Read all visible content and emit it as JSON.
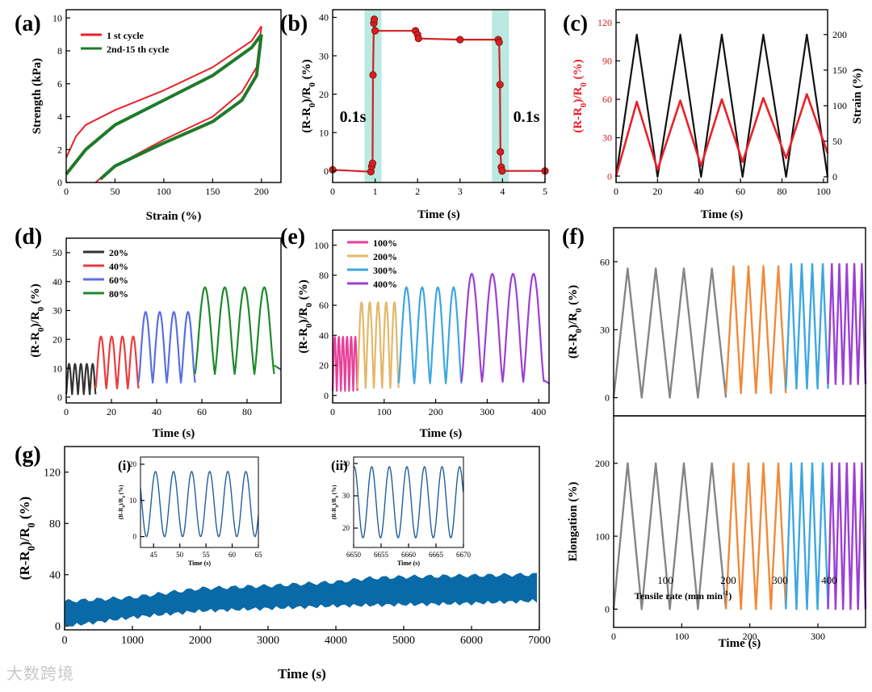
{
  "watermark": "大数跨境",
  "chart_data": [
    {
      "panel": "(a)",
      "type": "line",
      "xlabel": "Strain (%)",
      "ylabel": "Strength (kPa)",
      "xlim": [
        0,
        220
      ],
      "ylim": [
        0,
        10.5
      ],
      "xticks": [
        0,
        50,
        100,
        150,
        200
      ],
      "yticks": [
        0,
        2,
        4,
        6,
        8,
        10
      ],
      "legend_position": "top-left",
      "series": [
        {
          "name": "1 st cycle",
          "color": "#e8212a",
          "loading": [
            [
              0,
              1.5
            ],
            [
              10,
              2.8
            ],
            [
              20,
              3.5
            ],
            [
              50,
              4.4
            ],
            [
              100,
              5.6
            ],
            [
              150,
              7.0
            ],
            [
              190,
              8.6
            ],
            [
              200,
              9.5
            ]
          ],
          "unloading": [
            [
              200,
              9.5
            ],
            [
              195,
              7.0
            ],
            [
              180,
              5.5
            ],
            [
              150,
              4.0
            ],
            [
              100,
              2.6
            ],
            [
              50,
              1.0
            ],
            [
              30,
              0
            ]
          ]
        },
        {
          "name": "2nd-15 th cycle",
          "color": "#1e7a2a",
          "loading": [
            [
              0,
              0.5
            ],
            [
              20,
              2.0
            ],
            [
              50,
              3.5
            ],
            [
              100,
              5.0
            ],
            [
              150,
              6.5
            ],
            [
              190,
              8.2
            ],
            [
              200,
              9.0
            ]
          ],
          "unloading": [
            [
              200,
              9.0
            ],
            [
              195,
              6.5
            ],
            [
              180,
              5.0
            ],
            [
              150,
              3.7
            ],
            [
              100,
              2.4
            ],
            [
              50,
              1.0
            ],
            [
              35,
              0.2
            ]
          ]
        }
      ]
    },
    {
      "panel": "(b)",
      "type": "line",
      "xlabel": "Time (s)",
      "ylabel": "(R-R0)/R0 (%)",
      "xlim": [
        0,
        5
      ],
      "ylim": [
        -3,
        42
      ],
      "xticks": [
        0,
        1,
        2,
        3,
        4,
        5
      ],
      "yticks": [
        0,
        10,
        20,
        30,
        40
      ],
      "color": "#d42020",
      "points": [
        [
          0,
          0.3
        ],
        [
          0.9,
          -0.2
        ],
        [
          0.92,
          1.2
        ],
        [
          0.94,
          2.0
        ],
        [
          0.95,
          25
        ],
        [
          0.97,
          38.5
        ],
        [
          0.98,
          39.5
        ],
        [
          1,
          36.5
        ],
        [
          1.95,
          36.5
        ],
        [
          2,
          35.5
        ],
        [
          2.02,
          34.5
        ],
        [
          3,
          34.2
        ],
        [
          3.9,
          34.2
        ],
        [
          3.92,
          33.5
        ],
        [
          3.94,
          22.5
        ],
        [
          3.95,
          5
        ],
        [
          3.97,
          1
        ],
        [
          3.99,
          0
        ],
        [
          5,
          0
        ]
      ],
      "annotations": [
        "0.1s",
        "0.1s"
      ],
      "highlight_bands": [
        [
          0.75,
          1.15
        ],
        [
          3.75,
          4.15
        ]
      ]
    },
    {
      "panel": "(c)",
      "type": "line",
      "xlabel": "Time (s)",
      "ylabel": "(R-R0)/R0 (%)",
      "ylabel_right": "Strain (%)",
      "xlim": [
        0,
        102
      ],
      "ylim": [
        -5,
        130
      ],
      "ylim_right": [
        -8,
        235
      ],
      "xticks": [
        0,
        20,
        40,
        60,
        80,
        100
      ],
      "yticks": [
        0,
        30,
        60,
        90,
        120
      ],
      "yticks_right": [
        0,
        50,
        100,
        150,
        200
      ],
      "series": [
        {
          "name": "(R-R0)/R0",
          "axis": "left",
          "color": "#e8212a",
          "x": [
            0,
            10,
            20,
            31,
            41,
            51,
            61,
            71,
            82,
            92,
            102
          ],
          "values": [
            0,
            58,
            5,
            59,
            8,
            60,
            11,
            61,
            14,
            64,
            18
          ]
        },
        {
          "name": "Strain",
          "axis": "right",
          "color": "#111111",
          "x": [
            0,
            10,
            20,
            31,
            41,
            51,
            61,
            71,
            82,
            92,
            102
          ],
          "values": [
            0,
            200,
            0,
            200,
            0,
            200,
            0,
            200,
            0,
            200,
            0
          ]
        }
      ]
    },
    {
      "panel": "(d)",
      "type": "line",
      "xlabel": "Time (s)",
      "ylabel": "(R-R0)/R0 (%)",
      "xlim": [
        0,
        95
      ],
      "ylim": [
        -2,
        55
      ],
      "xticks": [
        0,
        20,
        40,
        60,
        80
      ],
      "yticks": [
        0,
        10,
        20,
        30,
        40,
        50
      ],
      "legend_position": "top-left",
      "series": [
        {
          "name": "20%",
          "color": "#333333",
          "start": 0,
          "end": 13,
          "cycles": 5,
          "low": 1,
          "high": 11.5
        },
        {
          "name": "40%",
          "color": "#ea3b3b",
          "start": 13,
          "end": 32,
          "cycles": 4,
          "low": 3,
          "high": 21
        },
        {
          "name": "60%",
          "color": "#5b6fe0",
          "start": 32,
          "end": 57,
          "cycles": 4,
          "low": 5,
          "high": 29.5
        },
        {
          "name": "80%",
          "color": "#1e8a2a",
          "start": 57,
          "end": 92,
          "cycles": 4,
          "low": 8,
          "high": 38
        }
      ]
    },
    {
      "panel": "(e)",
      "type": "line",
      "xlabel": "Time (s)",
      "ylabel": "(R-R0)/R0 (%)",
      "xlim": [
        0,
        420
      ],
      "ylim": [
        -5,
        110
      ],
      "xticks": [
        0,
        100,
        200,
        300,
        400
      ],
      "yticks": [
        0,
        20,
        40,
        60,
        80,
        100
      ],
      "legend_position": "top-left",
      "series": [
        {
          "name": "100%",
          "color": "#e8409a",
          "start": 0,
          "end": 48,
          "cycles": 6,
          "low": 3,
          "high": 39
        },
        {
          "name": "200%",
          "color": "#e2b86a",
          "start": 48,
          "end": 128,
          "cycles": 5,
          "low": 5,
          "high": 62
        },
        {
          "name": "300%",
          "color": "#3ea7e0",
          "start": 128,
          "end": 250,
          "cycles": 4,
          "low": 8,
          "high": 72
        },
        {
          "name": "400%",
          "color": "#9b3fd6",
          "start": 250,
          "end": 410,
          "cycles": 4,
          "low": 9,
          "high": 81
        }
      ]
    },
    {
      "panel": "(f)",
      "type": "line",
      "xlabel": "Time (s)",
      "xlim": [
        0,
        370
      ],
      "xticks": [
        0,
        100,
        200,
        300
      ],
      "group_label": "Tensile rate (mm min-1)",
      "group_ticks": [
        "100",
        "200",
        "300",
        "400"
      ],
      "top": {
        "ylabel": "(R-R0)/R0 (%)",
        "ylim": [
          -8,
          75
        ],
        "yticks": [
          0,
          30,
          60
        ],
        "series": [
          {
            "name": "100",
            "color": "#858585",
            "start": 0,
            "end": 165,
            "cycles": 4,
            "low": 0,
            "high": 57
          },
          {
            "name": "200",
            "color": "#f08a3a",
            "start": 165,
            "end": 253,
            "cycles": 4,
            "low": 2,
            "high": 58
          },
          {
            "name": "300",
            "color": "#3ea7e0",
            "start": 253,
            "end": 315,
            "cycles": 4,
            "low": 4,
            "high": 59
          },
          {
            "name": "400",
            "color": "#9b3fd6",
            "start": 315,
            "end": 370,
            "cycles": 5,
            "low": 6,
            "high": 59
          }
        ]
      },
      "bottom": {
        "ylabel": "Elongation (%)",
        "ylim": [
          -25,
          265
        ],
        "yticks": [
          0,
          100,
          200
        ],
        "series": [
          {
            "name": "100",
            "color": "#858585",
            "start": 0,
            "end": 165,
            "cycles": 4,
            "low": 0,
            "high": 200
          },
          {
            "name": "200",
            "color": "#f08a3a",
            "start": 165,
            "end": 253,
            "cycles": 4,
            "low": 0,
            "high": 200
          },
          {
            "name": "300",
            "color": "#3ea7e0",
            "start": 253,
            "end": 315,
            "cycles": 4,
            "low": 0,
            "high": 200
          },
          {
            "name": "400",
            "color": "#9b3fd6",
            "start": 315,
            "end": 370,
            "cycles": 5,
            "low": 0,
            "high": 200
          }
        ]
      }
    },
    {
      "panel": "(g)",
      "type": "area",
      "xlabel": "Time (s)",
      "ylabel": "(R-R0)/R0 (%)",
      "xlim": [
        0,
        7000
      ],
      "ylim": [
        -3,
        140
      ],
      "xticks": [
        0,
        1000,
        2000,
        3000,
        4000,
        5000,
        6000,
        7000
      ],
      "yticks": [
        0,
        40,
        80,
        120
      ],
      "color": "#0a6aa8",
      "lower": [
        [
          0,
          0
        ],
        [
          1000,
          7
        ],
        [
          2000,
          12
        ],
        [
          3000,
          14
        ],
        [
          4000,
          16
        ],
        [
          5000,
          17
        ],
        [
          6000,
          18
        ],
        [
          7000,
          20
        ]
      ],
      "upper": [
        [
          0,
          19
        ],
        [
          1000,
          22
        ],
        [
          2000,
          29
        ],
        [
          3000,
          31
        ],
        [
          4000,
          34
        ],
        [
          4500,
          37
        ],
        [
          5000,
          38
        ],
        [
          6000,
          39
        ],
        [
          7000,
          40
        ]
      ],
      "insets": [
        {
          "label": "(i)",
          "xlabel": "Time (s)",
          "ylabel": "(R-R0)/R0 (%)",
          "xlim": [
            42.5,
            65
          ],
          "ylim": [
            -3,
            22
          ],
          "xticks": [
            45,
            50,
            55,
            60,
            65
          ],
          "yticks": [
            0,
            10,
            20
          ],
          "period": 3.45,
          "phase": 44.5,
          "low": 0,
          "high": 18,
          "color": "#1f5f99"
        },
        {
          "label": "(ii)",
          "xlabel": "Time (s)",
          "ylabel": "(R-R0)/R0 (%)",
          "xlim": [
            6650,
            6670
          ],
          "ylim": [
            14,
            42
          ],
          "xticks": [
            6650,
            6655,
            6660,
            6665,
            6670
          ],
          "yticks": [
            20,
            30,
            40
          ],
          "period": 3.2,
          "phase": 6652.5,
          "low": 17,
          "high": 39,
          "color": "#1f5f99"
        }
      ]
    }
  ]
}
